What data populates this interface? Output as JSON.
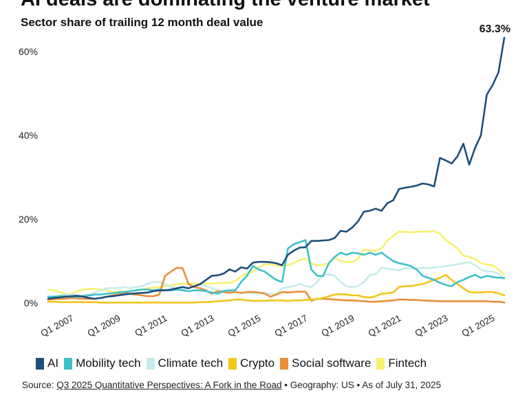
{
  "title": "AI deals are dominating the venture market",
  "subtitle": "Sector share of trailing 12 month deal value",
  "source": {
    "prefix": "Source: ",
    "link_text": "Q3 2025 Quantitative Perspectives: A Fork in the Road",
    "suffix": " • Geography: US • As of July 31, 2025"
  },
  "chart_data": {
    "type": "line",
    "title": "AI deals are dominating the venture market",
    "subtitle": "Sector share of trailing 12 month deal value",
    "ylim": [
      0,
      65
    ],
    "y_ticks": [
      0,
      20,
      40,
      60
    ],
    "y_tick_labels": [
      "0%",
      "20%",
      "40%",
      "60%"
    ],
    "x_tick_labels": [
      "Q1 2007",
      "Q1 2009",
      "Q1 2011",
      "Q1 2013",
      "Q1 2015",
      "Q1 2017",
      "Q1 2019",
      "Q1 2021",
      "Q1 2023",
      "Q1 2025"
    ],
    "grid": false,
    "legend_position": "bottom",
    "end_label": {
      "series": "AI",
      "text": "63.3%"
    },
    "categories": [
      "Q1 2006",
      "Q2 2006",
      "Q3 2006",
      "Q4 2006",
      "Q1 2007",
      "Q2 2007",
      "Q3 2007",
      "Q4 2007",
      "Q1 2008",
      "Q2 2008",
      "Q3 2008",
      "Q4 2008",
      "Q1 2009",
      "Q2 2009",
      "Q3 2009",
      "Q4 2009",
      "Q1 2010",
      "Q2 2010",
      "Q3 2010",
      "Q4 2010",
      "Q1 2011",
      "Q2 2011",
      "Q3 2011",
      "Q4 2011",
      "Q1 2012",
      "Q2 2012",
      "Q3 2012",
      "Q4 2012",
      "Q1 2013",
      "Q2 2013",
      "Q3 2013",
      "Q4 2013",
      "Q1 2014",
      "Q2 2014",
      "Q3 2014",
      "Q4 2014",
      "Q1 2015",
      "Q2 2015",
      "Q3 2015",
      "Q4 2015",
      "Q1 2016",
      "Q2 2016",
      "Q3 2016",
      "Q4 2016",
      "Q1 2017",
      "Q2 2017",
      "Q3 2017",
      "Q4 2017",
      "Q1 2018",
      "Q2 2018",
      "Q3 2018",
      "Q4 2018",
      "Q1 2019",
      "Q2 2019",
      "Q3 2019",
      "Q4 2019",
      "Q1 2020",
      "Q2 2020",
      "Q3 2020",
      "Q4 2020",
      "Q1 2021",
      "Q2 2021",
      "Q3 2021",
      "Q4 2021",
      "Q1 2022",
      "Q2 2022",
      "Q3 2022",
      "Q4 2022",
      "Q1 2023",
      "Q2 2023",
      "Q3 2023",
      "Q4 2023",
      "Q1 2024",
      "Q2 2024",
      "Q3 2024",
      "Q4 2024",
      "Q1 2025",
      "Q2 2025",
      "Q3 2025"
    ],
    "series": [
      {
        "name": "Fintech",
        "color": "#f8f06e",
        "values": [
          3.1,
          3.0,
          2.6,
          2.1,
          2.2,
          2.8,
          3.2,
          3.4,
          3.3,
          3.2,
          3.0,
          2.6,
          2.6,
          2.7,
          2.8,
          3.0,
          3.2,
          3.5,
          3.6,
          3.8,
          4.0,
          4.2,
          4.5,
          4.6,
          4.6,
          4.6,
          4.6,
          4.6,
          4.6,
          4.7,
          4.8,
          4.8,
          5.2,
          6.4,
          7.0,
          7.5,
          8.5,
          9.2,
          9.2,
          9.0,
          8.8,
          9.0,
          9.5,
          10.3,
          10.5,
          9.5,
          9.0,
          9.0,
          9.5,
          10.8,
          10.0,
          9.7,
          9.8,
          10.5,
          12.8,
          12.5,
          12.5,
          13.0,
          14.9,
          16.0,
          17.0,
          17.0,
          16.8,
          17.0,
          17.0,
          17.0,
          17.2,
          16.5,
          15.0,
          14.0,
          13.0,
          11.3,
          11.0,
          10.5,
          9.5,
          9.2,
          9.0,
          8.0,
          6.7
        ]
      },
      {
        "name": "Climate tech",
        "color": "#c5ecea",
        "values": [
          1.5,
          1.5,
          1.8,
          2.0,
          2.0,
          1.8,
          1.8,
          2.0,
          2.5,
          3.0,
          3.5,
          3.5,
          3.6,
          3.8,
          3.5,
          3.8,
          4.0,
          4.6,
          5.0,
          5.0,
          4.5,
          3.8,
          3.5,
          3.2,
          3.5,
          4.0,
          4.5,
          4.0,
          3.5,
          3.0,
          3.0,
          2.8,
          2.6,
          2.5,
          2.5,
          2.4,
          2.2,
          2.3,
          2.2,
          2.0,
          3.5,
          3.8,
          4.0,
          4.6,
          4.0,
          3.8,
          5.0,
          6.7,
          6.8,
          6.5,
          5.0,
          4.0,
          3.8,
          4.0,
          5.0,
          6.7,
          6.8,
          8.4,
          8.2,
          8.0,
          7.8,
          8.3,
          8.3,
          8.2,
          8.4,
          8.3,
          8.5,
          8.6,
          8.8,
          9.0,
          9.2,
          9.5,
          9.7,
          9.0,
          8.0,
          7.5,
          7.5,
          7.0,
          5.5
        ]
      },
      {
        "name": "Social software",
        "color": "#e88f38",
        "values": [
          0.8,
          0.9,
          1.0,
          1.0,
          1.2,
          1.1,
          1.0,
          1.0,
          1.0,
          1.2,
          1.5,
          1.8,
          2.0,
          2.5,
          2.2,
          2.0,
          1.8,
          1.6,
          1.6,
          2.0,
          6.5,
          7.5,
          8.4,
          8.3,
          4.5,
          3.8,
          3.5,
          3.0,
          2.2,
          2.8,
          2.6,
          2.4,
          2.6,
          2.4,
          2.6,
          2.6,
          2.5,
          2.3,
          1.5,
          2.0,
          2.6,
          2.5,
          2.6,
          2.7,
          2.7,
          0.5,
          1.0,
          1.0,
          0.9,
          0.8,
          0.7,
          0.6,
          0.6,
          0.5,
          0.4,
          0.3,
          0.3,
          0.4,
          0.5,
          0.6,
          0.8,
          0.8,
          0.7,
          0.7,
          0.6,
          0.5,
          0.5,
          0.4,
          0.4,
          0.4,
          0.4,
          0.4,
          0.4,
          0.4,
          0.4,
          0.4,
          0.3,
          0.3,
          0.1
        ]
      },
      {
        "name": "Crypto",
        "color": "#f5c518",
        "values": [
          0.3,
          0.3,
          0.2,
          0.2,
          0.2,
          0.2,
          0.2,
          0.2,
          0.2,
          0.1,
          0.1,
          0.1,
          0.1,
          0.1,
          0.1,
          0.1,
          0.1,
          0.1,
          0.1,
          0.1,
          0.1,
          0.1,
          0.1,
          0.1,
          0.1,
          0.1,
          0.2,
          0.2,
          0.3,
          0.4,
          0.5,
          0.6,
          0.8,
          0.8,
          0.6,
          0.5,
          0.5,
          0.5,
          0.6,
          0.6,
          0.6,
          0.5,
          0.6,
          0.6,
          0.7,
          0.8,
          0.9,
          1.2,
          1.6,
          2.0,
          2.1,
          2.0,
          1.8,
          1.8,
          1.4,
          1.3,
          1.6,
          2.2,
          2.3,
          2.5,
          3.8,
          4.0,
          4.0,
          4.3,
          4.5,
          5.0,
          5.5,
          6.0,
          6.7,
          5.5,
          4.5,
          3.5,
          2.6,
          2.5,
          2.5,
          2.6,
          2.6,
          2.3,
          1.8
        ]
      },
      {
        "name": "Mobility tech",
        "color": "#3ec1c9",
        "values": [
          1.5,
          1.5,
          1.6,
          1.6,
          1.5,
          1.5,
          1.6,
          1.8,
          2.0,
          2.0,
          2.2,
          2.3,
          2.5,
          2.6,
          2.8,
          3.0,
          3.2,
          3.2,
          3.0,
          3.2,
          3.0,
          3.0,
          3.2,
          3.0,
          2.8,
          3.0,
          3.0,
          2.8,
          2.5,
          2.2,
          2.8,
          3.0,
          3.0,
          5.0,
          6.5,
          8.8,
          8.0,
          7.5,
          6.5,
          5.5,
          5.0,
          13.0,
          14.0,
          14.5,
          15.0,
          8.0,
          6.5,
          6.4,
          9.5,
          11.0,
          12.0,
          11.5,
          12.0,
          11.8,
          11.5,
          12.0,
          11.5,
          12.0,
          11.0,
          10.0,
          9.5,
          9.2,
          8.8,
          8.0,
          6.5,
          6.0,
          5.5,
          4.8,
          4.3,
          4.0,
          5.0,
          5.5,
          6.2,
          6.7,
          6.0,
          6.5,
          6.2,
          6.0,
          6.0
        ]
      },
      {
        "name": "AI",
        "color": "#1f4e7a",
        "values": [
          1.0,
          1.2,
          1.3,
          1.5,
          1.6,
          1.7,
          1.5,
          1.2,
          1.0,
          1.2,
          1.5,
          1.6,
          1.8,
          2.0,
          2.2,
          2.3,
          2.4,
          2.5,
          2.8,
          3.0,
          3.0,
          3.2,
          3.5,
          3.8,
          3.5,
          4.0,
          4.5,
          5.5,
          6.5,
          6.6,
          7.0,
          8.0,
          7.5,
          8.5,
          8.2,
          9.6,
          9.8,
          9.8,
          9.7,
          9.5,
          9.0,
          11.5,
          12.5,
          13.2,
          13.3,
          14.8,
          14.8,
          14.9,
          15.0,
          15.5,
          17.2,
          17.0,
          18.0,
          19.5,
          21.8,
          22.0,
          22.5,
          22.0,
          23.8,
          24.5,
          27.2,
          27.5,
          27.7,
          28.0,
          28.5,
          28.3,
          27.8,
          34.6,
          34.0,
          33.3,
          35.0,
          38.0,
          33.0,
          37.0,
          40.0,
          49.7,
          52.0,
          55.0,
          63.3
        ]
      }
    ],
    "legend": [
      "AI",
      "Mobility tech",
      "Climate tech",
      "Crypto",
      "Social software",
      "Fintech"
    ]
  }
}
